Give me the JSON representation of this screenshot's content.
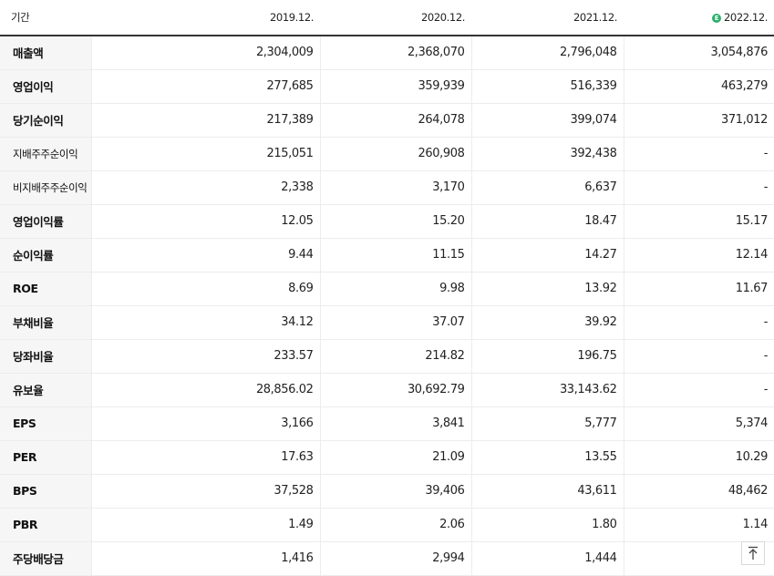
{
  "header": {
    "label": "기간",
    "periods": [
      "2019.12.",
      "2020.12.",
      "2021.12.",
      "2022.12."
    ],
    "estimate_icon_text": "E",
    "estimate_color": "#2bb06b"
  },
  "rows": [
    {
      "label": "매출액",
      "values": [
        "2,304,009",
        "2,368,070",
        "2,796,048",
        "3,054,876"
      ]
    },
    {
      "label": "영업이익",
      "values": [
        "277,685",
        "359,939",
        "516,339",
        "463,279"
      ]
    },
    {
      "label": "당기순이익",
      "values": [
        "217,389",
        "264,078",
        "399,074",
        "371,012"
      ]
    },
    {
      "label": "지배주주순이익",
      "values": [
        "215,051",
        "260,908",
        "392,438",
        "-"
      ]
    },
    {
      "label": "비지배주주순이익",
      "values": [
        "2,338",
        "3,170",
        "6,637",
        "-"
      ]
    },
    {
      "label": "영업이익률",
      "values": [
        "12.05",
        "15.20",
        "18.47",
        "15.17"
      ]
    },
    {
      "label": "순이익률",
      "values": [
        "9.44",
        "11.15",
        "14.27",
        "12.14"
      ]
    },
    {
      "label": "ROE",
      "values": [
        "8.69",
        "9.98",
        "13.92",
        "11.67"
      ]
    },
    {
      "label": "부채비율",
      "values": [
        "34.12",
        "37.07",
        "39.92",
        "-"
      ]
    },
    {
      "label": "당좌비율",
      "values": [
        "233.57",
        "214.82",
        "196.75",
        "-"
      ]
    },
    {
      "label": "유보율",
      "values": [
        "28,856.02",
        "30,692.79",
        "33,143.62",
        "-"
      ]
    },
    {
      "label": "EPS",
      "values": [
        "3,166",
        "3,841",
        "5,777",
        "5,374"
      ]
    },
    {
      "label": "PER",
      "values": [
        "17.63",
        "21.09",
        "13.55",
        "10.29"
      ]
    },
    {
      "label": "BPS",
      "values": [
        "37,528",
        "39,406",
        "43,611",
        "48,462"
      ]
    },
    {
      "label": "PBR",
      "values": [
        "1.49",
        "2.06",
        "1.80",
        "1.14"
      ]
    },
    {
      "label": "주당배당금",
      "values": [
        "1,416",
        "2,994",
        "1,444",
        ""
      ]
    }
  ],
  "scroll_top_icon": "arrow-up-to-top-icon"
}
